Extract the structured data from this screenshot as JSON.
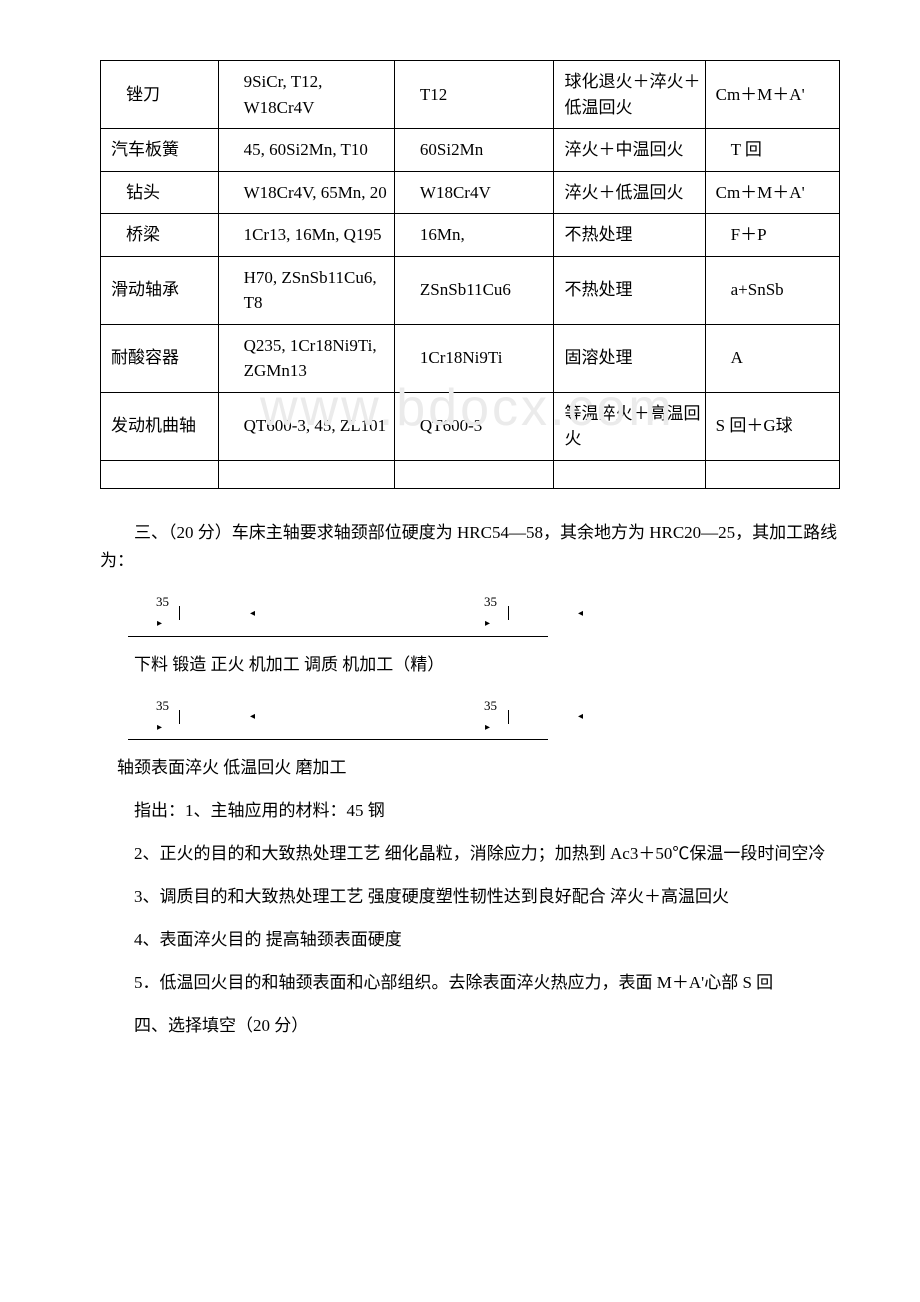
{
  "table": {
    "rows": [
      {
        "c1": "锉刀",
        "c2": "9SiCr, T12, W18Cr4V",
        "c3": "T12",
        "c4": "球化退火＋淬火＋低温回火",
        "c5": "Cm＋M＋A'"
      },
      {
        "c1": "汽车板簧",
        "c2": "45, 60Si2Mn, T10",
        "c3": "60Si2Mn",
        "c4": "淬火＋中温回火",
        "c5": "T 回"
      },
      {
        "c1": "钻头",
        "c2": "W18Cr4V,  65Mn, 20",
        "c3": "W18Cr4V",
        "c4": "淬火＋低温回火",
        "c5": "Cm＋M＋A'"
      },
      {
        "c1": "桥梁",
        "c2": "1Cr13, 16Mn, Q195",
        "c3": "16Mn,",
        "c4": "不热处理",
        "c5": "F＋P"
      },
      {
        "c1": "滑动轴承",
        "c2": "H70, ZSnSb11Cu6, T8",
        "c3": "ZSnSb11Cu6",
        "c4": "不热处理",
        "c5": "a+SnSb"
      },
      {
        "c1": "耐酸容器",
        "c2": "Q235, 1Cr18Ni9Ti, ZGMn13",
        "c3": "1Cr18Ni9Ti",
        "c4": "固溶处理",
        "c5": "A"
      },
      {
        "c1": "发动机曲轴",
        "c2": "QT600-3, 45, ZL101",
        "c3": "QT600-3",
        "c4": "等温淬火＋高温回火",
        "c5": "S 回＋G球"
      }
    ]
  },
  "watermark": "www.bdocx.com",
  "section3": {
    "title": "三、（20 分）车床主轴要求轴颈部位硬度为 HRC54—58，其余地方为 HRC20—25，其加工路线为：",
    "arrow_label": "35",
    "line1": "下料  锻造  正火  机加工  调质  机加工（精）",
    "line2": " 轴颈表面淬火  低温回火  磨加工",
    "p1": "指出：1、主轴应用的材料：45 钢",
    "p2": "2、正火的目的和大致热处理工艺 细化晶粒，消除应力；加热到 Ac3＋50℃保温一段时间空冷",
    "p3": "3、调质目的和大致热处理工艺 强度硬度塑性韧性达到良好配合 淬火＋高温回火",
    "p4": "4、表面淬火目的 提高轴颈表面硬度",
    "p5": "5．低温回火目的和轴颈表面和心部组织。去除表面淬火热应力，表面 M＋A'心部 S 回"
  },
  "section4": "四、选择填空（20 分）"
}
